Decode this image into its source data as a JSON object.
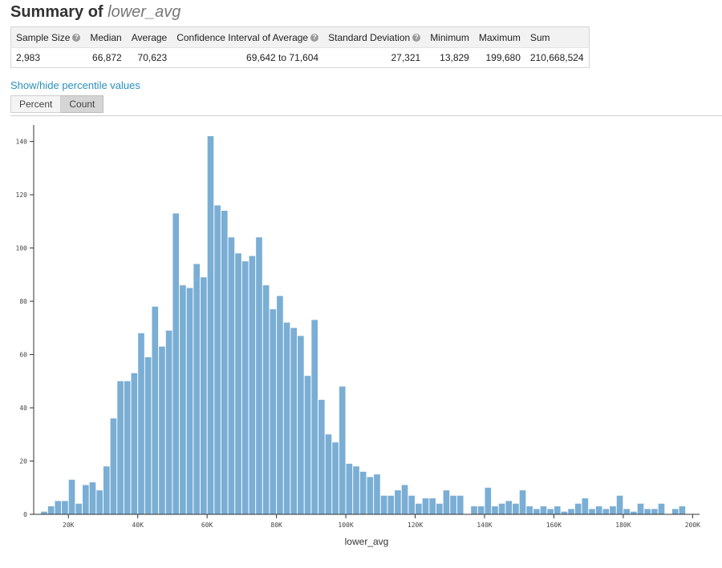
{
  "header": {
    "title_prefix": "Summary of",
    "variable": "lower_avg"
  },
  "stats": {
    "headers": [
      {
        "label": "Sample Size",
        "help": true
      },
      {
        "label": "Median",
        "help": false
      },
      {
        "label": "Average",
        "help": false
      },
      {
        "label": "Confidence Interval of Average",
        "help": true
      },
      {
        "label": "Standard Deviation",
        "help": true
      },
      {
        "label": "Minimum",
        "help": false
      },
      {
        "label": "Maximum",
        "help": false
      },
      {
        "label": "Sum",
        "help": false
      }
    ],
    "values": [
      "2,983",
      "66,872",
      "70,623",
      "69,642 to 71,604",
      "27,321",
      "13,829",
      "199,680",
      "210,668,524"
    ]
  },
  "controls": {
    "toggle_label": "Show/hide percentile values",
    "percent_label": "Percent",
    "count_label": "Count",
    "active": "count"
  },
  "colors": {
    "bar": "#7aaed4",
    "link": "#2a8fbd",
    "axis": "#333333"
  },
  "chart_data": {
    "type": "bar",
    "title": "",
    "xlabel": "lower_avg",
    "ylabel": "",
    "grid": false,
    "xlim": [
      10000,
      202000
    ],
    "ylim": [
      0,
      145
    ],
    "bin_width": 2000,
    "bin_starts": [
      12000,
      14000,
      16000,
      18000,
      20000,
      22000,
      24000,
      26000,
      28000,
      30000,
      32000,
      34000,
      36000,
      38000,
      40000,
      42000,
      44000,
      46000,
      48000,
      50000,
      52000,
      54000,
      56000,
      58000,
      60000,
      62000,
      64000,
      66000,
      68000,
      70000,
      72000,
      74000,
      76000,
      78000,
      80000,
      82000,
      84000,
      86000,
      88000,
      90000,
      92000,
      94000,
      96000,
      98000,
      100000,
      102000,
      104000,
      106000,
      108000,
      110000,
      112000,
      114000,
      116000,
      118000,
      120000,
      122000,
      124000,
      126000,
      128000,
      130000,
      132000,
      134000,
      136000,
      138000,
      140000,
      142000,
      144000,
      146000,
      148000,
      150000,
      152000,
      154000,
      156000,
      158000,
      160000,
      162000,
      164000,
      166000,
      168000,
      170000,
      172000,
      174000,
      176000,
      178000,
      180000,
      182000,
      184000,
      186000,
      188000,
      190000,
      192000,
      194000,
      196000,
      198000
    ],
    "values": [
      1,
      3,
      5,
      5,
      13,
      4,
      11,
      12,
      9,
      18,
      36,
      50,
      50,
      53,
      68,
      59,
      78,
      63,
      69,
      113,
      86,
      85,
      94,
      89,
      142,
      116,
      114,
      104,
      98,
      95,
      97,
      104,
      86,
      77,
      82,
      72,
      70,
      67,
      52,
      73,
      43,
      30,
      27,
      48,
      19,
      18,
      16,
      14,
      15,
      7,
      7,
      9,
      11,
      7,
      4,
      6,
      6,
      4,
      9,
      7,
      7,
      0,
      3,
      3,
      10,
      3,
      4,
      5,
      4,
      9,
      3,
      2,
      3,
      2,
      3,
      1,
      2,
      4,
      6,
      2,
      3,
      2,
      3,
      7,
      2,
      1,
      4,
      2,
      2,
      4,
      0,
      2,
      3,
      0,
      0,
      1
    ],
    "x_ticks": [
      20000,
      40000,
      60000,
      80000,
      100000,
      120000,
      140000,
      160000,
      180000,
      200000
    ],
    "x_tick_labels": [
      "20K",
      "40K",
      "60K",
      "80K",
      "100K",
      "120K",
      "140K",
      "160K",
      "180K",
      "200K"
    ],
    "y_ticks": [
      0,
      20,
      40,
      60,
      80,
      100,
      120,
      140
    ],
    "y_tick_labels": [
      "0",
      "20",
      "40",
      "60",
      "80",
      "100",
      "120",
      "140"
    ]
  }
}
